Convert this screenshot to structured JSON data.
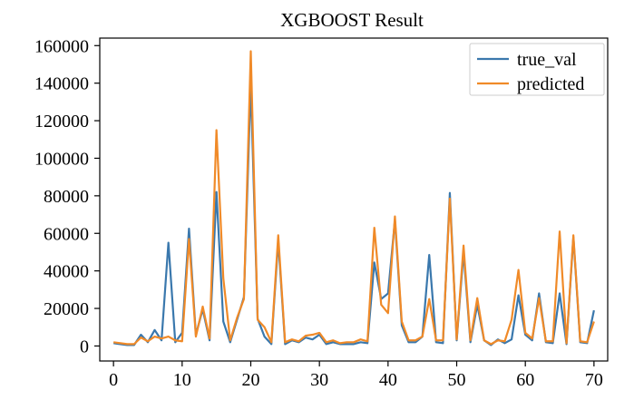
{
  "chart_data": {
    "type": "line",
    "title": "XGBOOST Result",
    "xlabel": "",
    "ylabel": "",
    "xlim": [
      -2,
      72
    ],
    "ylim": [
      -8000,
      164000
    ],
    "xticks": [
      0,
      10,
      20,
      30,
      40,
      50,
      60,
      70
    ],
    "yticks": [
      0,
      20000,
      40000,
      60000,
      80000,
      100000,
      120000,
      140000,
      160000
    ],
    "grid": false,
    "legend": "top-right",
    "x": [
      0,
      1,
      2,
      3,
      4,
      5,
      6,
      7,
      8,
      9,
      10,
      11,
      12,
      13,
      14,
      15,
      16,
      17,
      18,
      19,
      20,
      21,
      22,
      23,
      24,
      25,
      26,
      27,
      28,
      29,
      30,
      31,
      32,
      33,
      34,
      35,
      36,
      37,
      38,
      39,
      40,
      41,
      42,
      43,
      44,
      45,
      46,
      47,
      48,
      49,
      50,
      51,
      52,
      53,
      54,
      55,
      56,
      57,
      58,
      59,
      60,
      61,
      62,
      63,
      64,
      65,
      66,
      67,
      68,
      69,
      70
    ],
    "series": [
      {
        "name": "true_val",
        "color": "#3a78ad",
        "values": [
          1500,
          1000,
          500,
          500,
          6000,
          2000,
          8500,
          3000,
          55000,
          2000,
          7000,
          62500,
          6000,
          19500,
          3000,
          82000,
          13000,
          2000,
          14000,
          26000,
          140000,
          14500,
          5000,
          1000,
          56000,
          1000,
          3000,
          2000,
          4500,
          3500,
          6000,
          1000,
          2000,
          1000,
          1000,
          1000,
          2000,
          1500,
          44500,
          25000,
          28000,
          67000,
          11000,
          2000,
          2000,
          5000,
          48500,
          2000,
          1500,
          81500,
          3000,
          50000,
          2000,
          22000,
          3000,
          500,
          3500,
          1500,
          3500,
          27000,
          6000,
          3000,
          28000,
          2000,
          1500,
          28000,
          1000,
          58000,
          2000,
          1500,
          19000
        ]
      },
      {
        "name": "predicted",
        "color": "#f08a28",
        "values": [
          2000,
          1500,
          1000,
          1000,
          4500,
          2500,
          5000,
          4000,
          5000,
          3000,
          2500,
          57000,
          5000,
          21000,
          4000,
          115000,
          36000,
          3000,
          15000,
          25000,
          157000,
          14000,
          10000,
          2000,
          59000,
          2000,
          3500,
          2500,
          5500,
          6000,
          7000,
          2000,
          3000,
          1500,
          2000,
          2000,
          3500,
          2500,
          63000,
          22000,
          17500,
          69000,
          13000,
          3000,
          3000,
          5000,
          25000,
          3000,
          3000,
          78500,
          3500,
          53500,
          3000,
          25500,
          3000,
          1000,
          3000,
          2500,
          14000,
          40500,
          7000,
          4000,
          25500,
          2500,
          2500,
          61000,
          1500,
          59000,
          2500,
          2000,
          13000
        ]
      }
    ]
  }
}
